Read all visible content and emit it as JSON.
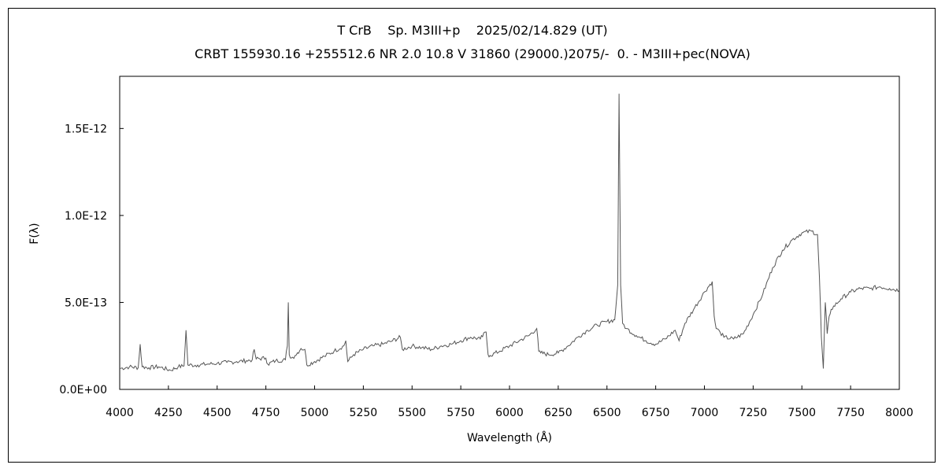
{
  "chart_data": {
    "type": "line",
    "title": "T CrB    Sp. M3III+p    2025/02/14.829 (UT)",
    "subtitle": "CRBT 155930.16 +255512.6 NR 2.0 10.8 V 31860 (29000.)2075/-  0. - M3III+pec(NOVA)",
    "xlabel": "Wavelength (Å)",
    "ylabel": "F(λ)",
    "xlim": [
      4000,
      8000
    ],
    "ylim": [
      0,
      1.8e-12
    ],
    "grid": false,
    "x_ticks": [
      4000,
      4250,
      4500,
      4750,
      5000,
      5250,
      5500,
      5750,
      6000,
      6250,
      6500,
      6750,
      7000,
      7250,
      7500,
      7750,
      8000
    ],
    "x_tick_labels": [
      "4000",
      "4250",
      "4500",
      "4750",
      "5000",
      "5250",
      "5500",
      "5750",
      "6000",
      "6250",
      "6500",
      "6750",
      "7000",
      "7250",
      "7500",
      "7750",
      "8000"
    ],
    "y_ticks": [
      0,
      5e-13,
      1e-12,
      1.5e-12
    ],
    "y_tick_labels": [
      "0.0E+00",
      "5.0E-13",
      "1.0E-12",
      "1.5E-12"
    ],
    "line_color": "#555555",
    "series": [
      {
        "x": [
          4000,
          4050,
          4095,
          4105,
          4115,
          4150,
          4200,
          4260,
          4300,
          4330,
          4340,
          4350,
          4400,
          4450,
          4500,
          4550,
          4600,
          4650,
          4680,
          4690,
          4700,
          4750,
          4760,
          4800,
          4850,
          4860,
          4865,
          4870,
          4880,
          4900,
          4930,
          4950,
          4960,
          5000,
          5050,
          5100,
          5150,
          5160,
          5170,
          5200,
          5250,
          5300,
          5350,
          5400,
          5440,
          5450,
          5500,
          5550,
          5600,
          5650,
          5700,
          5750,
          5800,
          5850,
          5880,
          5890,
          5900,
          5950,
          6000,
          6050,
          6100,
          6140,
          6150,
          6160,
          6200,
          6250,
          6300,
          6350,
          6400,
          6450,
          6500,
          6540,
          6555,
          6562,
          6570,
          6580,
          6600,
          6650,
          6700,
          6750,
          6800,
          6850,
          6870,
          6900,
          6950,
          7000,
          7040,
          7050,
          7060,
          7080,
          7100,
          7150,
          7200,
          7250,
          7300,
          7350,
          7400,
          7450,
          7500,
          7550,
          7580,
          7590,
          7600,
          7610,
          7620,
          7630,
          7640,
          7650,
          7700,
          7750,
          7800,
          7850,
          7900,
          7950,
          8000
        ],
        "y": [
          1.2e-13,
          1.3e-13,
          1.25e-13,
          2.6e-13,
          1.3e-13,
          1.25e-13,
          1.3e-13,
          1.1e-13,
          1.3e-13,
          1.35e-13,
          3.4e-13,
          1.4e-13,
          1.4e-13,
          1.45e-13,
          1.5e-13,
          1.55e-13,
          1.6e-13,
          1.65e-13,
          1.7e-13,
          2.3e-13,
          1.75e-13,
          1.8e-13,
          1.45e-13,
          1.65e-13,
          1.7e-13,
          2.5e-13,
          5e-13,
          2e-13,
          1.8e-13,
          1.95e-13,
          2.35e-13,
          2.3e-13,
          1.4e-13,
          1.6e-13,
          1.9e-13,
          2.2e-13,
          2.5e-13,
          2.8e-13,
          1.6e-13,
          2e-13,
          2.3e-13,
          2.5e-13,
          2.6e-13,
          2.8e-13,
          3e-13,
          2.3e-13,
          2.5e-13,
          2.4e-13,
          2.3e-13,
          2.5e-13,
          2.6e-13,
          2.8e-13,
          3e-13,
          2.9e-13,
          3.3e-13,
          2e-13,
          1.95e-13,
          2.2e-13,
          2.5e-13,
          2.8e-13,
          3.1e-13,
          3.5e-13,
          2.2e-13,
          2.1e-13,
          2e-13,
          2.1e-13,
          2.5e-13,
          3e-13,
          3.4e-13,
          3.7e-13,
          3.9e-13,
          4e-13,
          6e-13,
          1.7e-12,
          6e-13,
          3.8e-13,
          3.5e-13,
          3.1e-13,
          2.8e-13,
          2.6e-13,
          2.9e-13,
          3.4e-13,
          2.8e-13,
          3.8e-13,
          4.7e-13,
          5.6e-13,
          6.2e-13,
          4.2e-13,
          3.5e-13,
          3.3e-13,
          3e-13,
          2.9e-13,
          3.2e-13,
          4.3e-13,
          5.5e-13,
          7e-13,
          8e-13,
          8.6e-13,
          9e-13,
          9.1e-13,
          8.9e-13,
          6.5e-13,
          3e-13,
          1.2e-13,
          5e-13,
          3.2e-13,
          4.2e-13,
          4.6e-13,
          5.2e-13,
          5.6e-13,
          5.8e-13,
          5.8e-13,
          5.9e-13,
          5.8e-13,
          5.7e-13
        ]
      }
    ]
  }
}
